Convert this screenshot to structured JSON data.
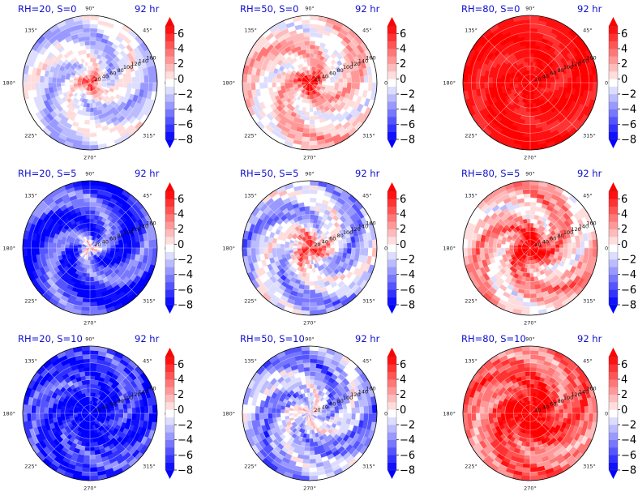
{
  "figure": {
    "panels": [
      {
        "title": "RH=20, S=0",
        "time": "92 hr"
      },
      {
        "title": "RH=50, S=0",
        "time": "92 hr"
      },
      {
        "title": "RH=80, S=0",
        "time": "92 hr"
      },
      {
        "title": "RH=20, S=5",
        "time": "92 hr"
      },
      {
        "title": "RH=50, S=5",
        "time": "92 hr"
      },
      {
        "title": "RH=80, S=5",
        "time": "92 hr"
      },
      {
        "title": "RH=20, S=10",
        "time": "92 hr"
      },
      {
        "title": "RH=50, S=10",
        "time": "92 hr"
      },
      {
        "title": "RH=80, S=10",
        "time": "92 hr"
      }
    ],
    "angle_labels": [
      "0°",
      "45°",
      "90°",
      "135°",
      "180°",
      "225°",
      "270°",
      "315°"
    ],
    "radial_labels": [
      "20",
      "40",
      "60",
      "80",
      "100",
      "120",
      "140",
      "160"
    ],
    "colorbar_ticks": [
      "6",
      "4",
      "2",
      "0",
      "−2",
      "−4",
      "−6",
      "−8"
    ]
  },
  "chart_data": {
    "type": "heatmap",
    "subtype": "polar filled contour",
    "layout": "3x3 grid",
    "colormap": "bwr",
    "colorbar": {
      "range": [
        -8,
        7
      ],
      "ticks": [
        6,
        4,
        2,
        0,
        -2,
        -4,
        -6,
        -8
      ],
      "extend": "both"
    },
    "radial_ticks": [
      20,
      40,
      60,
      80,
      100,
      120,
      140,
      160
    ],
    "angle_ticks_deg": [
      0,
      45,
      90,
      135,
      180,
      225,
      270,
      315
    ],
    "panels": [
      {
        "title": "RH=20, S=0",
        "time": "92 hr",
        "overall": "weak negative",
        "core": "strong positive"
      },
      {
        "title": "RH=50, S=0",
        "time": "92 hr",
        "overall": "weak positive",
        "core": "strong positive"
      },
      {
        "title": "RH=80, S=0",
        "time": "92 hr",
        "overall": "strong positive",
        "core": "strong positive"
      },
      {
        "title": "RH=20, S=5",
        "time": "92 hr",
        "overall": "strong negative",
        "core": "strong positive"
      },
      {
        "title": "RH=50, S=5",
        "time": "92 hr",
        "overall": "negative",
        "core": "strong positive"
      },
      {
        "title": "RH=80, S=5",
        "time": "92 hr",
        "overall": "positive",
        "core": "strong positive"
      },
      {
        "title": "RH=20, S=10",
        "time": "92 hr",
        "overall": "strong negative",
        "core": "negative"
      },
      {
        "title": "RH=50, S=10",
        "time": "92 hr",
        "overall": "negative",
        "core": "weak positive"
      },
      {
        "title": "RH=80, S=10",
        "time": "92 hr",
        "overall": "positive",
        "core": "positive"
      }
    ]
  }
}
